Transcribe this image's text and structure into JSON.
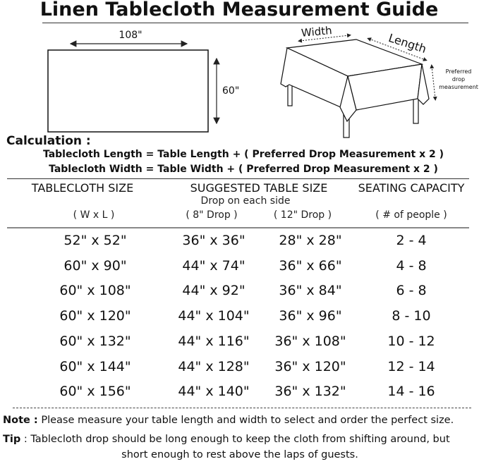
{
  "title": "Linen Tablecloth Measurement Guide",
  "diagram": {
    "rect_width_label": "108\"",
    "rect_height_label": "60\"",
    "table_width_label": "Width",
    "table_length_label": "Length",
    "drop_label_lines": [
      "Preferred",
      "drop",
      "measurement"
    ]
  },
  "calculation": {
    "label": "Calculation :",
    "formulas": [
      "Tablecloth Length = Table Length + ( Preferred Drop Measurement x 2 )",
      "Tablecloth Width = Table Width + ( Preferred Drop Measurement x 2 )"
    ]
  },
  "table": {
    "headers": [
      "TABLECLOTH SIZE",
      "SUGGESTED TABLE SIZE",
      "SEATING CAPACITY"
    ],
    "drop_note": "Drop on each side",
    "subheaders": [
      "( W x L )",
      "( 8\" Drop )",
      "( 12\" Drop )",
      "( # of people )"
    ],
    "rows": [
      [
        "52\" x 52\"",
        "36\" x 36\"",
        "28\" x 28\"",
        "2 - 4"
      ],
      [
        "60\" x 90\"",
        "44\" x 74\"",
        "36\" x 66\"",
        "4 - 8"
      ],
      [
        "60\" x 108\"",
        "44\" x 92\"",
        "36\" x 84\"",
        "6 - 8"
      ],
      [
        "60\" x 120\"",
        "44\" x 104\"",
        "36\" x 96\"",
        "8 - 10"
      ],
      [
        "60\" x 132\"",
        "44\" x 116\"",
        "36\" x 108\"",
        "10 - 12"
      ],
      [
        "60\" x 144\"",
        "44\" x 128\"",
        "36\" x 120\"",
        "12 - 14"
      ],
      [
        "60\" x 156\"",
        "44\" x 140\"",
        "36\" x 132\"",
        "14 - 16"
      ]
    ]
  },
  "note": {
    "label": "Note :",
    "text": "Please measure your table length and width to select and order the perfect size."
  },
  "tip": {
    "label": "Tip",
    "text_line1": ": Tablecloth drop should be long enough to keep the cloth from shifting around, but",
    "text_line2": "short enough to rest above the laps of guests."
  }
}
